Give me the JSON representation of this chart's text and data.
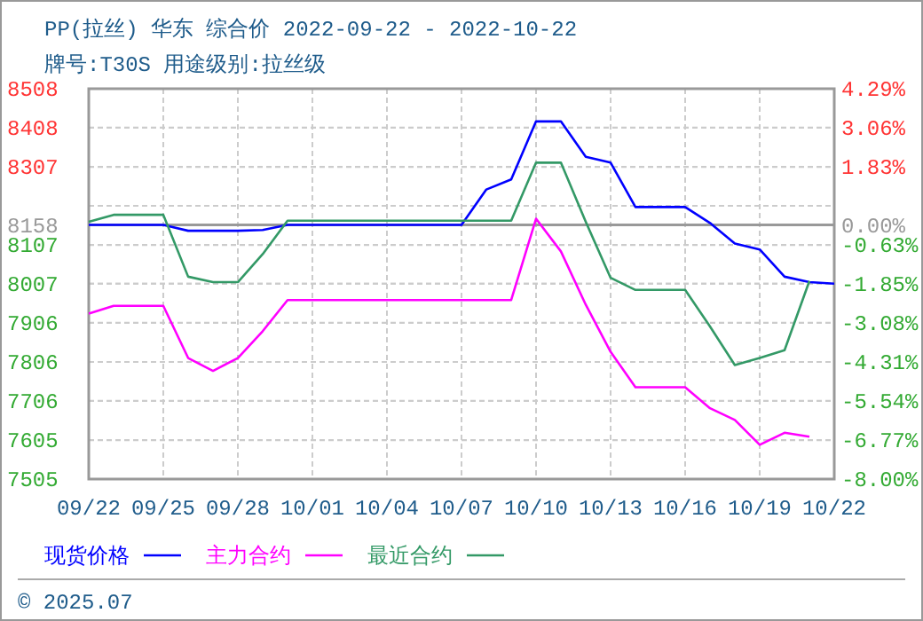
{
  "chart_data": {
    "type": "line",
    "title": "PP(拉丝) 华东 综合价 2022-09-22 - 2022-10-22",
    "subtitle": "牌号:T30S 用途级别:拉丝级",
    "x": [
      "2022-09-22",
      "2022-09-23",
      "2022-09-24",
      "2022-09-25",
      "2022-09-26",
      "2022-09-27",
      "2022-09-28",
      "2022-09-29",
      "2022-09-30",
      "2022-10-01",
      "2022-10-02",
      "2022-10-03",
      "2022-10-04",
      "2022-10-05",
      "2022-10-06",
      "2022-10-07",
      "2022-10-08",
      "2022-10-09",
      "2022-10-10",
      "2022-10-11",
      "2022-10-12",
      "2022-10-13",
      "2022-10-14",
      "2022-10-15",
      "2022-10-16",
      "2022-10-17",
      "2022-10-18",
      "2022-10-19",
      "2022-10-20",
      "2022-10-21",
      "2022-10-22"
    ],
    "series": [
      {
        "name": "现货价格",
        "color": "#0000ff",
        "values": [
          8158,
          8158,
          8158,
          8158,
          8143,
          8143,
          8143,
          8145,
          8158,
          8158,
          8158,
          8158,
          8158,
          8158,
          8158,
          8158,
          8249,
          8275,
          8424,
          8424,
          8333,
          8318,
          8204,
          8204,
          8204,
          8163,
          8110,
          8095,
          8025,
          8011,
          8007
        ]
      },
      {
        "name": "主力合约",
        "color": "#ff00ff",
        "values": [
          7930,
          7950,
          7950,
          7950,
          7816,
          7783,
          7816,
          7885,
          7965,
          7965,
          7965,
          7965,
          7965,
          7965,
          7965,
          7965,
          7965,
          7965,
          8174,
          8090,
          7953,
          7832,
          7741,
          7741,
          7741,
          7687,
          7657,
          7593,
          7624,
          7614,
          null
        ]
      },
      {
        "name": "最近合约",
        "color": "#339966",
        "values": [
          8166,
          8184,
          8184,
          8184,
          8025,
          8011,
          8011,
          8083,
          8169,
          8169,
          8169,
          8169,
          8169,
          8169,
          8169,
          8169,
          8169,
          8169,
          8318,
          8318,
          8166,
          8022,
          7991,
          7991,
          7991,
          7897,
          7798,
          7816,
          7836,
          8014,
          null
        ]
      }
    ],
    "xlim": [
      "2022-09-22",
      "2022-10-22"
    ],
    "xticks": [
      {
        "value": "2022-09-22",
        "label": "09/22"
      },
      {
        "value": "2022-09-25",
        "label": "09/25"
      },
      {
        "value": "2022-09-28",
        "label": "09/28"
      },
      {
        "value": "2022-10-01",
        "label": "10/01"
      },
      {
        "value": "2022-10-04",
        "label": "10/04"
      },
      {
        "value": "2022-10-07",
        "label": "10/07"
      },
      {
        "value": "2022-10-10",
        "label": "10/10"
      },
      {
        "value": "2022-10-13",
        "label": "10/13"
      },
      {
        "value": "2022-10-16",
        "label": "10/16"
      },
      {
        "value": "2022-10-19",
        "label": "10/19"
      },
      {
        "value": "2022-10-22",
        "label": "10/22"
      }
    ],
    "ylim": [
      7505,
      8508
    ],
    "yticks": [
      8508,
      8408,
      8307,
      {
        "value": 8207,
        "label": null
      },
      8158,
      8107,
      8007,
      7906,
      7806,
      7706,
      7605,
      7505
    ],
    "y2lim": [
      -8.0,
      4.29
    ],
    "y2ticks": [
      {
        "value": 4.29,
        "label": "4.29%"
      },
      {
        "value": 3.06,
        "label": "3.06%"
      },
      {
        "value": 1.83,
        "label": "1.83%"
      },
      {
        "value": 0.6,
        "label": null
      },
      {
        "value": 0,
        "label": "0.00%"
      },
      {
        "value": -0.63,
        "label": "-0.63%"
      },
      {
        "value": -1.85,
        "label": "-1.85%"
      },
      {
        "value": -3.08,
        "label": "-3.08%"
      },
      {
        "value": -4.31,
        "label": "-4.31%"
      },
      {
        "value": -5.54,
        "label": "-5.54%"
      },
      {
        "value": -6.77,
        "label": "-6.77%"
      },
      {
        "value": -8.0,
        "label": "-8.00%"
      }
    ],
    "ref_lines": [
      {
        "axis": "y",
        "value": 8158,
        "color": "#999999"
      }
    ],
    "grid": true,
    "legend": "bottom",
    "annotations": [
      "© 2025.07"
    ]
  }
}
